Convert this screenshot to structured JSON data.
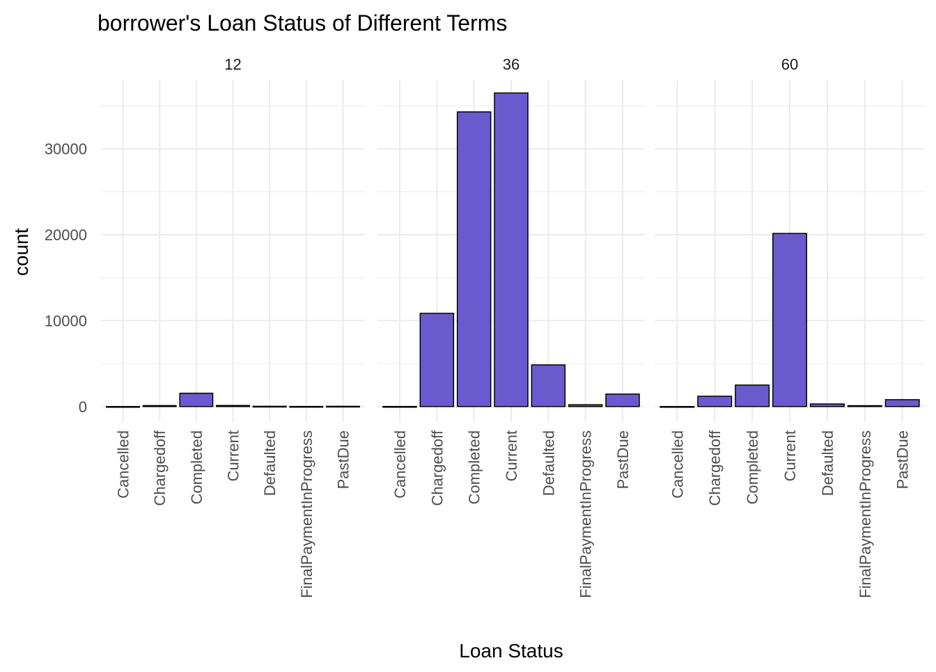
{
  "chart_data": {
    "type": "bar",
    "title": "borrower's Loan Status of Different Terms",
    "xlabel": "Loan Status",
    "ylabel": "count",
    "categories": [
      "Cancelled",
      "Chargedoff",
      "Completed",
      "Current",
      "Defaulted",
      "FinalPaymentInProgress",
      "PastDue"
    ],
    "facets": [
      {
        "label": "12",
        "values": [
          0,
          110,
          1550,
          120,
          30,
          10,
          30
        ]
      },
      {
        "label": "36",
        "values": [
          5,
          10850,
          34300,
          36500,
          4850,
          210,
          1450
        ]
      },
      {
        "label": "60",
        "values": [
          0,
          1200,
          2500,
          20150,
          300,
          100,
          800
        ]
      }
    ],
    "yticks": [
      0,
      10000,
      20000,
      30000
    ],
    "ylim": [
      -1800,
      38000
    ],
    "bar_color": "#6A5ACD",
    "bar_outline": "#000000",
    "grid": true,
    "gridline_color": "#EBEBEB",
    "legend": "none"
  }
}
